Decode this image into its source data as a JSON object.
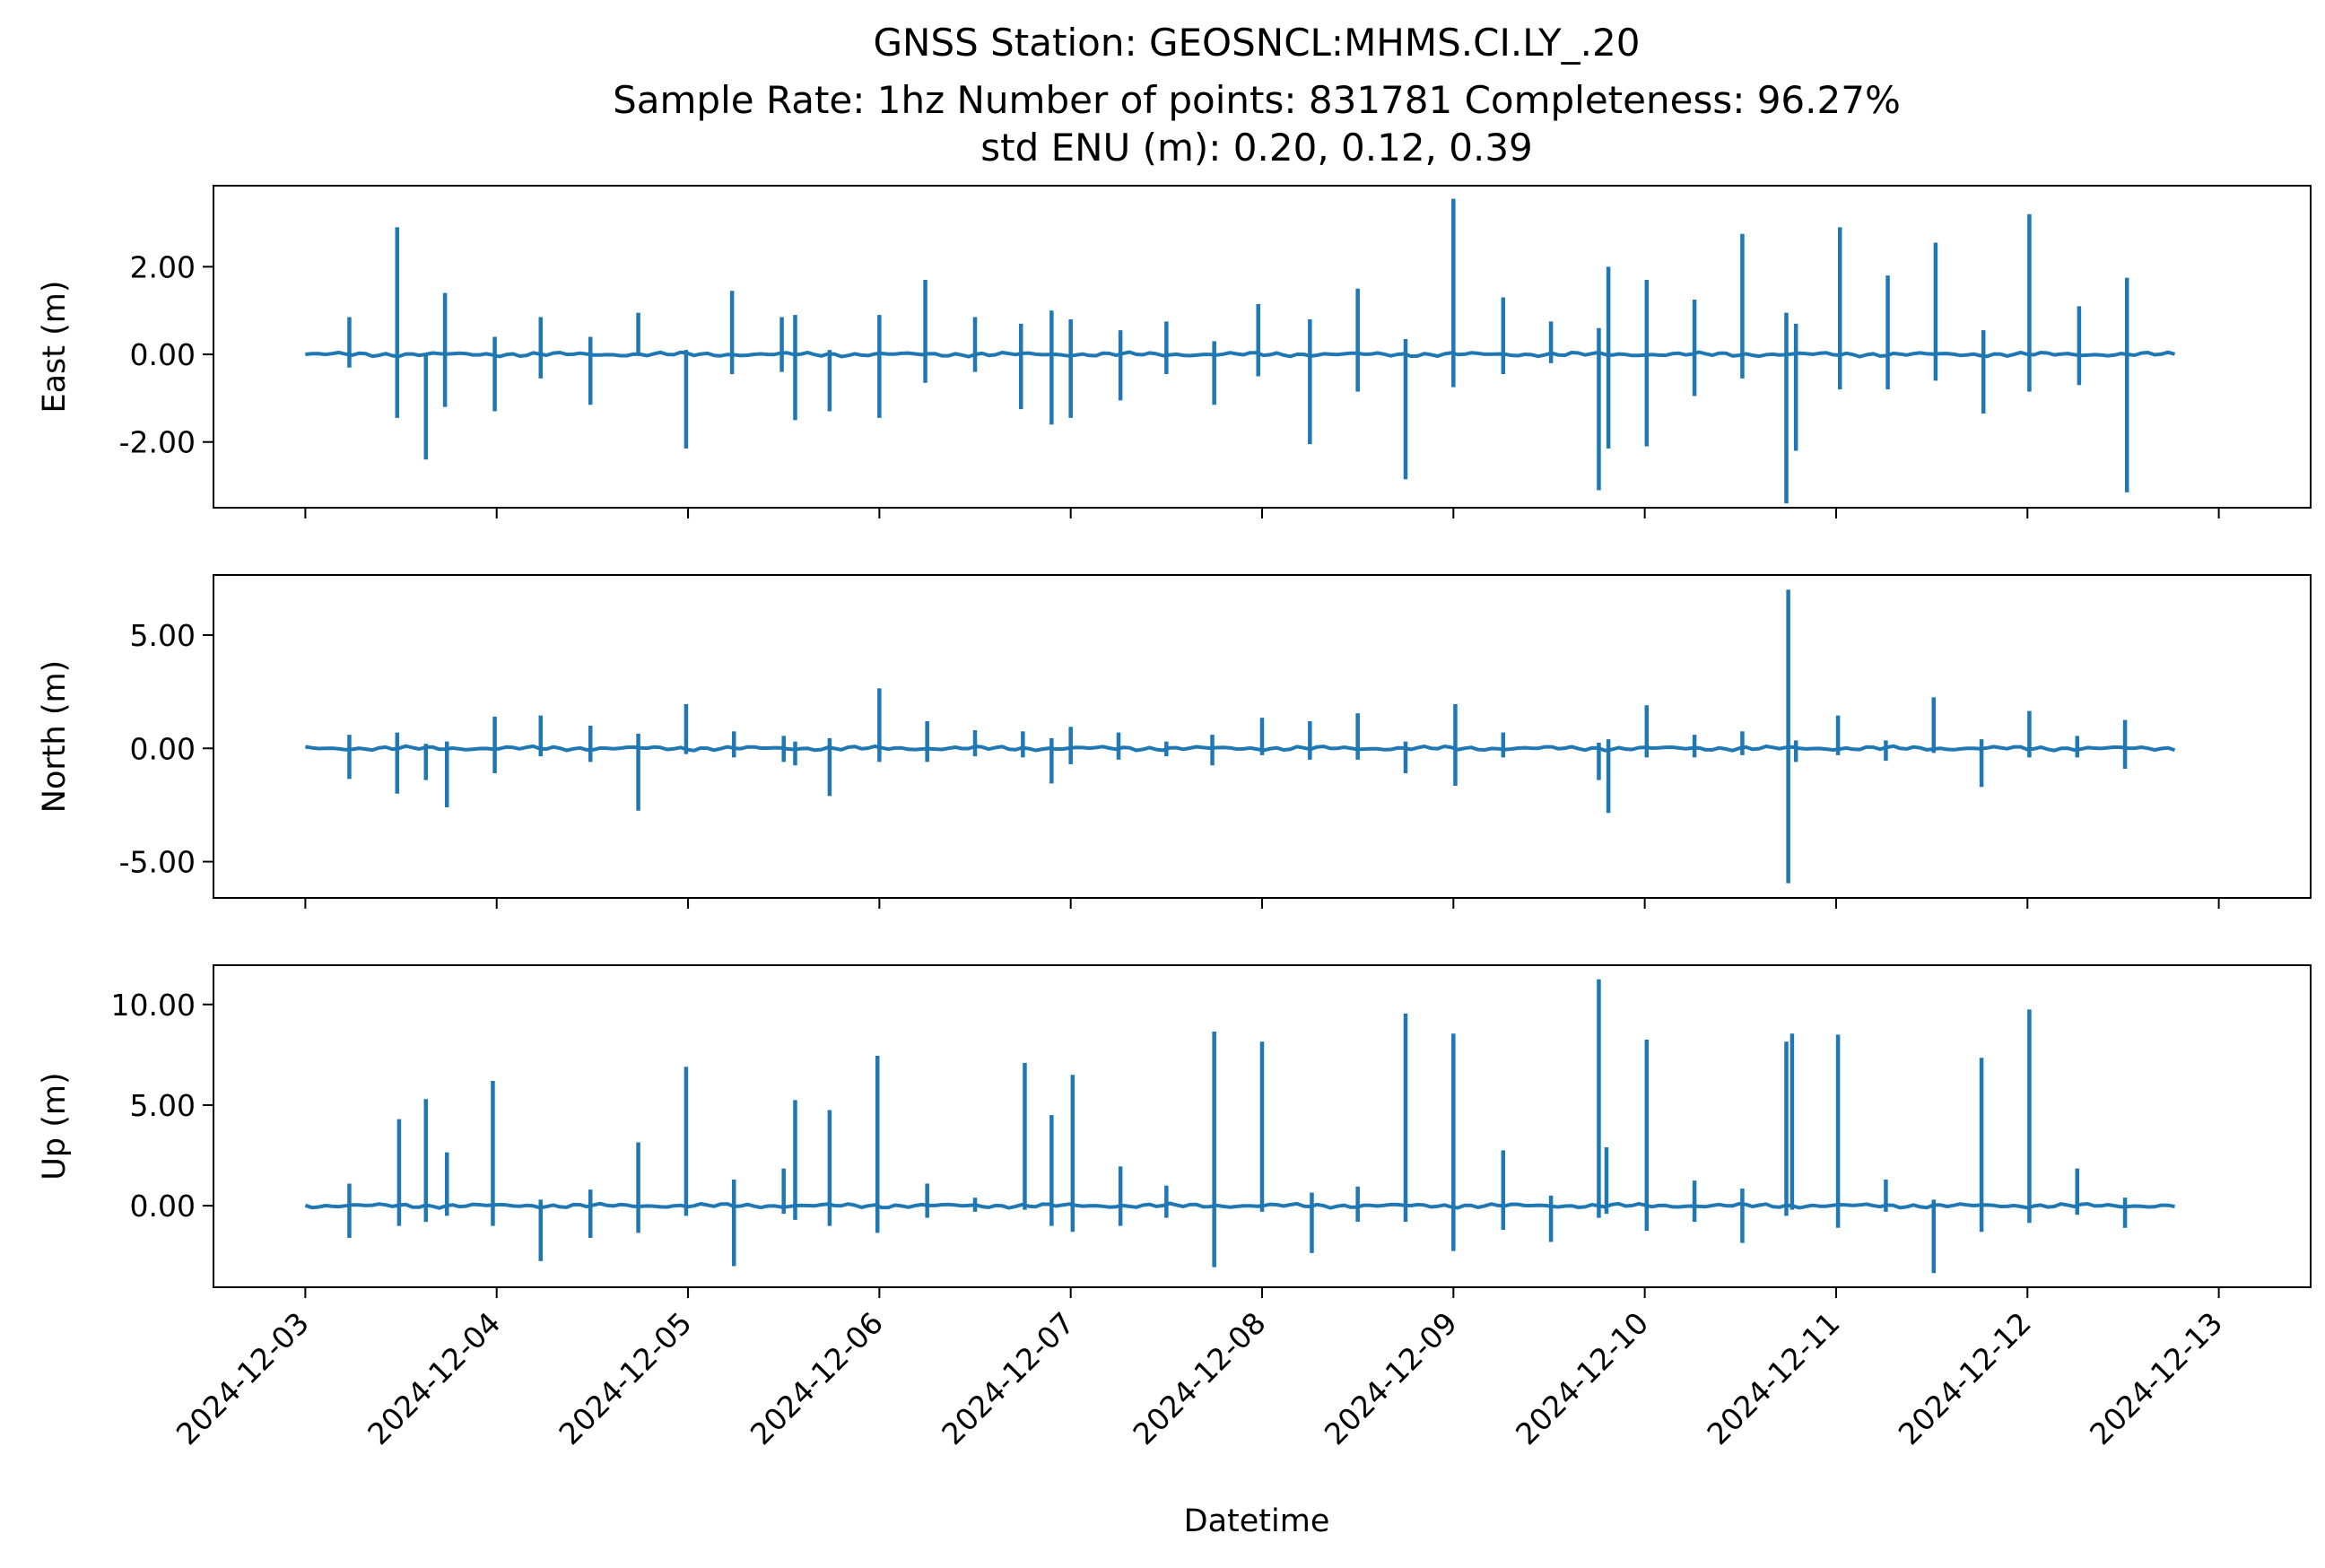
{
  "figure": {
    "title_lines": [
      "GNSS Station: GEOSNCL:MHMS.CI.LY_.20",
      "Sample Rate: 1hz   Number of points: 831781    Completeness:  96.27%",
      "std ENU (m):  0.20, 0.12, 0.39"
    ],
    "xlabel": "Datetime",
    "line_color": "#1f77b4"
  },
  "chart_data": {
    "type": "line",
    "x_dates": [
      "2024-12-03",
      "2024-12-04",
      "2024-12-05",
      "2024-12-06",
      "2024-12-07",
      "2024-12-08",
      "2024-12-09",
      "2024-12-10",
      "2024-12-11",
      "2024-12-12",
      "2024-12-13"
    ],
    "xlim_days": [
      -0.48,
      10.48
    ],
    "data_range_days": [
      0.0,
      9.77
    ],
    "panels": [
      {
        "ylabel": "East (m)",
        "ylim": [
          -3.5,
          3.85
        ],
        "yticks": [
          2.0,
          0.0,
          -2.0
        ],
        "ytick_labels": [
          "2.00",
          "0.00",
          "-2.00"
        ],
        "spikes": [
          {
            "day": 0.23,
            "up": 0.85,
            "down": -0.3
          },
          {
            "day": 0.48,
            "up": 2.9,
            "down": -1.45
          },
          {
            "day": 0.63,
            "up": 0.0,
            "down": -2.4
          },
          {
            "day": 0.73,
            "up": 1.4,
            "down": -1.2
          },
          {
            "day": 0.99,
            "up": 0.4,
            "down": -1.3
          },
          {
            "day": 1.23,
            "up": 0.85,
            "down": -0.55
          },
          {
            "day": 1.49,
            "up": 0.4,
            "down": -1.15
          },
          {
            "day": 1.74,
            "up": 0.95,
            "down": 0.0
          },
          {
            "day": 1.99,
            "up": 0.1,
            "down": -2.15
          },
          {
            "day": 2.23,
            "up": 1.45,
            "down": -0.45
          },
          {
            "day": 2.49,
            "up": 0.85,
            "down": -0.4
          },
          {
            "day": 2.56,
            "up": 0.9,
            "down": -1.5
          },
          {
            "day": 2.74,
            "up": 0.1,
            "down": -1.3
          },
          {
            "day": 3.0,
            "up": 0.9,
            "down": -1.45
          },
          {
            "day": 3.24,
            "up": 1.7,
            "down": -0.65
          },
          {
            "day": 3.5,
            "up": 0.85,
            "down": -0.4
          },
          {
            "day": 3.74,
            "up": 0.7,
            "down": -1.25
          },
          {
            "day": 3.9,
            "up": 1.0,
            "down": -1.6
          },
          {
            "day": 4.0,
            "up": 0.8,
            "down": -1.45
          },
          {
            "day": 4.26,
            "up": 0.55,
            "down": -1.05
          },
          {
            "day": 4.5,
            "up": 0.75,
            "down": -0.45
          },
          {
            "day": 4.75,
            "up": 0.3,
            "down": -1.15
          },
          {
            "day": 4.98,
            "up": 1.15,
            "down": -0.5
          },
          {
            "day": 5.25,
            "up": 0.8,
            "down": -2.05
          },
          {
            "day": 5.5,
            "up": 1.5,
            "down": -0.85
          },
          {
            "day": 5.75,
            "up": 0.35,
            "down": -2.85
          },
          {
            "day": 6.0,
            "up": 3.55,
            "down": -0.75
          },
          {
            "day": 6.26,
            "up": 1.3,
            "down": -0.45
          },
          {
            "day": 6.51,
            "up": 0.75,
            "down": -0.2
          },
          {
            "day": 6.76,
            "up": 0.6,
            "down": -3.1
          },
          {
            "day": 6.81,
            "up": 2.0,
            "down": -2.15
          },
          {
            "day": 7.01,
            "up": 1.7,
            "down": -2.1
          },
          {
            "day": 7.26,
            "up": 1.25,
            "down": -0.95
          },
          {
            "day": 7.51,
            "up": 2.75,
            "down": -0.55
          },
          {
            "day": 7.74,
            "up": 0.95,
            "down": -3.4
          },
          {
            "day": 7.79,
            "up": 0.7,
            "down": -2.2
          },
          {
            "day": 8.02,
            "up": 2.9,
            "down": -0.8
          },
          {
            "day": 8.27,
            "up": 1.8,
            "down": -0.8
          },
          {
            "day": 8.52,
            "up": 2.55,
            "down": -0.6
          },
          {
            "day": 8.77,
            "up": 0.55,
            "down": -1.35
          },
          {
            "day": 9.01,
            "up": 3.2,
            "down": -0.85
          },
          {
            "day": 9.27,
            "up": 1.1,
            "down": -0.7
          },
          {
            "day": 9.52,
            "up": 1.75,
            "down": -3.15
          }
        ]
      },
      {
        "ylabel": "North (m)",
        "ylim": [
          -6.6,
          7.65
        ],
        "yticks": [
          5.0,
          0.0,
          -5.0
        ],
        "ytick_labels": [
          "5.00",
          "0.00",
          "-5.00"
        ],
        "spikes": [
          {
            "day": 0.23,
            "up": 0.6,
            "down": -1.35
          },
          {
            "day": 0.48,
            "up": 0.7,
            "down": -2.0
          },
          {
            "day": 0.63,
            "up": 0.2,
            "down": -1.4
          },
          {
            "day": 0.74,
            "up": 0.3,
            "down": -2.6
          },
          {
            "day": 0.99,
            "up": 1.4,
            "down": -1.1
          },
          {
            "day": 1.23,
            "up": 1.45,
            "down": -0.35
          },
          {
            "day": 1.49,
            "up": 1.0,
            "down": -0.6
          },
          {
            "day": 1.74,
            "up": 0.65,
            "down": -2.75
          },
          {
            "day": 1.99,
            "up": 1.95,
            "down": -0.25
          },
          {
            "day": 2.24,
            "up": 0.75,
            "down": -0.4
          },
          {
            "day": 2.5,
            "up": 0.55,
            "down": -0.6
          },
          {
            "day": 2.56,
            "up": 0.3,
            "down": -0.75
          },
          {
            "day": 2.74,
            "up": 0.45,
            "down": -2.1
          },
          {
            "day": 3.0,
            "up": 2.65,
            "down": -0.6
          },
          {
            "day": 3.25,
            "up": 1.2,
            "down": -0.6
          },
          {
            "day": 3.5,
            "up": 0.8,
            "down": -0.35
          },
          {
            "day": 3.75,
            "up": 0.75,
            "down": -0.4
          },
          {
            "day": 3.9,
            "up": 0.45,
            "down": -1.55
          },
          {
            "day": 4.0,
            "up": 0.95,
            "down": -0.7
          },
          {
            "day": 4.25,
            "up": 0.7,
            "down": -0.5
          },
          {
            "day": 4.5,
            "up": 0.3,
            "down": -0.35
          },
          {
            "day": 4.74,
            "up": 0.6,
            "down": -0.75
          },
          {
            "day": 5.0,
            "up": 1.35,
            "down": -0.3
          },
          {
            "day": 5.25,
            "up": 1.2,
            "down": -0.5
          },
          {
            "day": 5.5,
            "up": 1.55,
            "down": -0.5
          },
          {
            "day": 5.75,
            "up": 0.3,
            "down": -1.1
          },
          {
            "day": 6.01,
            "up": 1.95,
            "down": -1.65
          },
          {
            "day": 6.26,
            "up": 0.7,
            "down": -0.4
          },
          {
            "day": 6.76,
            "up": 0.25,
            "down": -1.4
          },
          {
            "day": 6.81,
            "up": 0.4,
            "down": -2.85
          },
          {
            "day": 7.01,
            "up": 1.9,
            "down": -0.4
          },
          {
            "day": 7.26,
            "up": 0.6,
            "down": -0.4
          },
          {
            "day": 7.51,
            "up": 0.75,
            "down": -0.3
          },
          {
            "day": 7.75,
            "up": 7.0,
            "down": -5.95
          },
          {
            "day": 7.79,
            "up": 0.35,
            "down": -0.6
          },
          {
            "day": 8.01,
            "up": 1.45,
            "down": -0.3
          },
          {
            "day": 8.26,
            "up": 0.35,
            "down": -0.55
          },
          {
            "day": 8.51,
            "up": 2.25,
            "down": -0.2
          },
          {
            "day": 8.76,
            "up": 0.4,
            "down": -1.7
          },
          {
            "day": 9.01,
            "up": 1.65,
            "down": -0.4
          },
          {
            "day": 9.26,
            "up": 0.55,
            "down": -0.4
          },
          {
            "day": 9.51,
            "up": 1.25,
            "down": -0.9
          }
        ]
      },
      {
        "ylabel": "Up (m)",
        "ylim": [
          -4.05,
          11.95
        ],
        "yticks": [
          10.0,
          5.0,
          0.0
        ],
        "ytick_labels": [
          "10.00",
          "5.00",
          "0.00"
        ],
        "spikes": [
          {
            "day": 0.23,
            "up": 1.1,
            "down": -1.6
          },
          {
            "day": 0.49,
            "up": 4.3,
            "down": -1.0
          },
          {
            "day": 0.63,
            "up": 5.3,
            "down": -0.8
          },
          {
            "day": 0.74,
            "up": 2.65,
            "down": -0.5
          },
          {
            "day": 0.98,
            "up": 6.2,
            "down": -1.0
          },
          {
            "day": 1.23,
            "up": 0.3,
            "down": -2.75
          },
          {
            "day": 1.49,
            "up": 0.8,
            "down": -1.6
          },
          {
            "day": 1.74,
            "up": 3.15,
            "down": -1.35
          },
          {
            "day": 1.99,
            "up": 6.9,
            "down": -0.5
          },
          {
            "day": 2.24,
            "up": 1.3,
            "down": -3.0
          },
          {
            "day": 2.5,
            "up": 1.85,
            "down": -0.4
          },
          {
            "day": 2.56,
            "up": 5.25,
            "down": -0.7
          },
          {
            "day": 2.74,
            "up": 4.75,
            "down": -1.0
          },
          {
            "day": 2.99,
            "up": 7.45,
            "down": -1.35
          },
          {
            "day": 3.25,
            "up": 1.1,
            "down": -0.6
          },
          {
            "day": 3.5,
            "up": 0.4,
            "down": -0.3
          },
          {
            "day": 3.76,
            "up": 7.1,
            "down": -0.2
          },
          {
            "day": 3.9,
            "up": 4.5,
            "down": -1.0
          },
          {
            "day": 4.01,
            "up": 6.5,
            "down": -1.3
          },
          {
            "day": 4.26,
            "up": 1.95,
            "down": -1.0
          },
          {
            "day": 4.5,
            "up": 1.0,
            "down": -0.6
          },
          {
            "day": 4.75,
            "up": 8.65,
            "down": -3.05
          },
          {
            "day": 5.0,
            "up": 8.15,
            "down": -0.3
          },
          {
            "day": 5.26,
            "up": 0.65,
            "down": -2.35
          },
          {
            "day": 5.5,
            "up": 0.95,
            "down": -0.8
          },
          {
            "day": 5.75,
            "up": 9.55,
            "down": -0.8
          },
          {
            "day": 6.0,
            "up": 8.55,
            "down": -2.25
          },
          {
            "day": 6.26,
            "up": 2.75,
            "down": -1.2
          },
          {
            "day": 6.51,
            "up": 0.5,
            "down": -1.8
          },
          {
            "day": 6.76,
            "up": 11.25,
            "down": -0.6
          },
          {
            "day": 6.8,
            "up": 2.9,
            "down": -0.4
          },
          {
            "day": 7.01,
            "up": 8.25,
            "down": -1.25
          },
          {
            "day": 7.26,
            "up": 1.25,
            "down": -0.8
          },
          {
            "day": 7.51,
            "up": 0.85,
            "down": -1.85
          },
          {
            "day": 7.74,
            "up": 8.15,
            "down": -0.5
          },
          {
            "day": 7.77,
            "up": 8.55,
            "down": -0.2
          },
          {
            "day": 8.01,
            "up": 8.5,
            "down": -1.1
          },
          {
            "day": 8.26,
            "up": 1.3,
            "down": -0.3
          },
          {
            "day": 8.51,
            "up": 0.3,
            "down": -3.35
          },
          {
            "day": 8.76,
            "up": 7.35,
            "down": -1.3
          },
          {
            "day": 9.01,
            "up": 9.75,
            "down": -0.85
          },
          {
            "day": 9.26,
            "up": 1.85,
            "down": -0.45
          },
          {
            "day": 9.51,
            "up": 0.4,
            "down": -1.1
          }
        ]
      }
    ]
  }
}
